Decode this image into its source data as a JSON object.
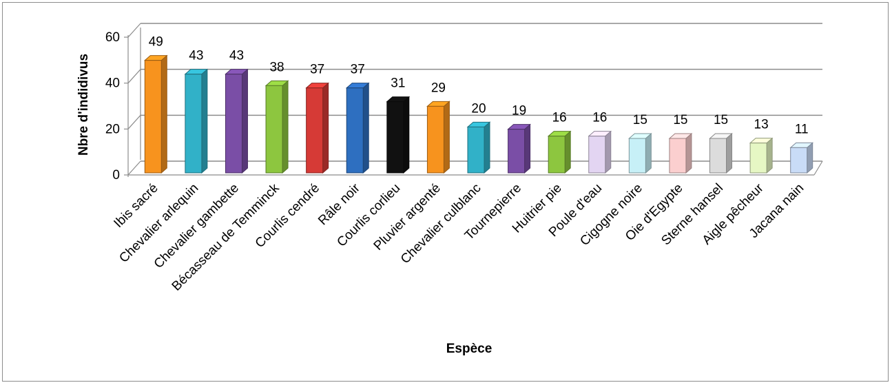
{
  "chart_data": {
    "type": "bar",
    "title": "",
    "xlabel": "Espèce",
    "ylabel": "Nbre d'indidivus",
    "ylim": [
      0,
      60
    ],
    "yticks": [
      0,
      20,
      40,
      60
    ],
    "grid": true,
    "legend": "none",
    "categories": [
      "Ibis sacré",
      "Chevalier arlequin",
      "Chevalier gambette",
      "Bécasseau de Temminck",
      "Courlis cendré",
      "Râle noir",
      "Courlis corlieu",
      "Pluvier argenté",
      "Chevalier culblanc",
      "Tournepierre",
      "Huitrier pie",
      "Poule d'eau",
      "Cigogne noire",
      "Oie d'Egypte",
      "Sterne hansel",
      "Aigle pêcheur",
      "Jacana nain"
    ],
    "values": [
      49,
      43,
      43,
      38,
      37,
      37,
      31,
      29,
      20,
      19,
      16,
      16,
      15,
      15,
      15,
      13,
      11
    ],
    "colors": [
      "#f7931e",
      "#31b1c8",
      "#7a4ea6",
      "#8dc63f",
      "#d63a36",
      "#2e6fc0",
      "#111111",
      "#f7931e",
      "#31b1c8",
      "#7a4ea6",
      "#8dc63f",
      "#e3d5f2",
      "#c7f0f7",
      "#fbcfcf",
      "#dcdcdc",
      "#e6f7c4",
      "#c9dcf7"
    ]
  }
}
